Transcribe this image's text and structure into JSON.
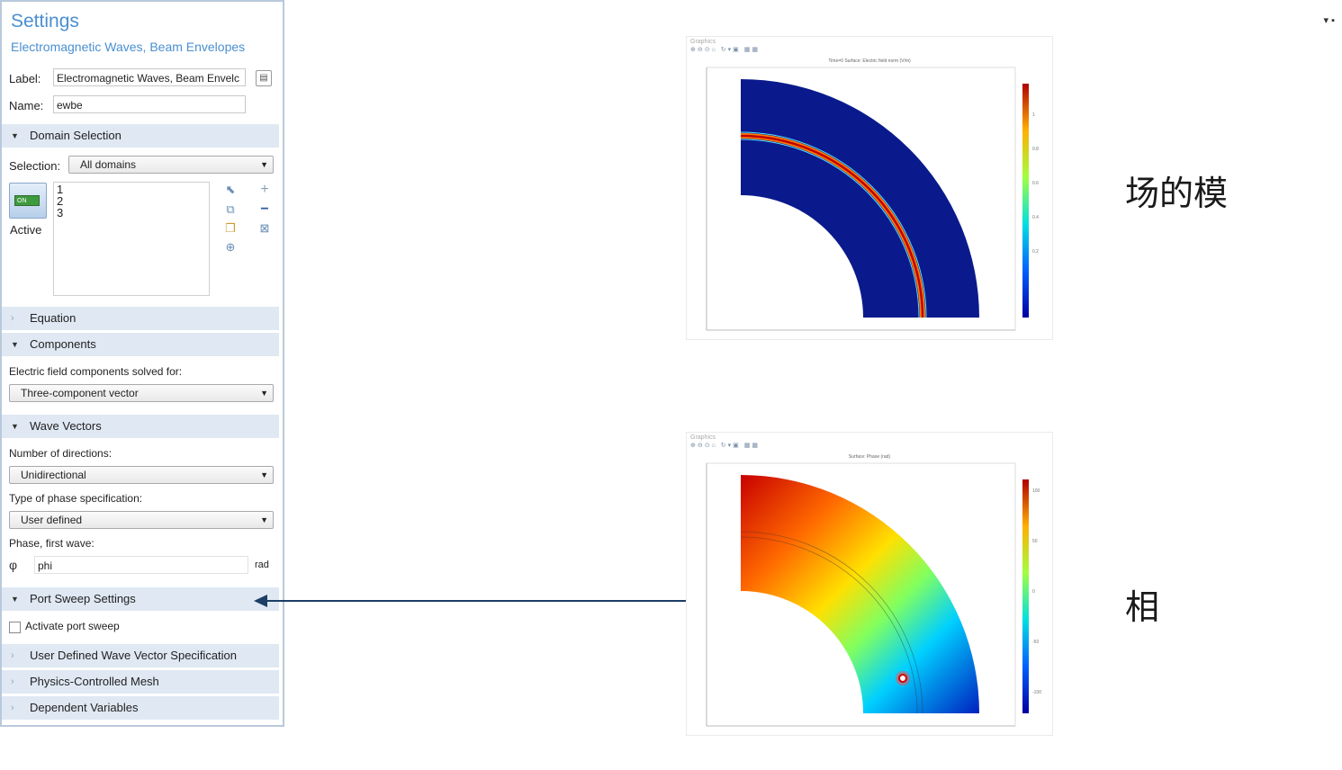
{
  "settings": {
    "title": "Settings",
    "subtitle": "Electromagnetic Waves, Beam Envelopes",
    "label_caption": "Label:",
    "label_value": "Electromagnetic Waves, Beam Envelc",
    "name_caption": "Name:",
    "name_value": "ewbe",
    "domain_selection": {
      "header": "Domain Selection",
      "selection_caption": "Selection:",
      "selection_value": "All domains",
      "active_toggle_text": "ON",
      "active_label": "Active",
      "domains": [
        "1",
        "2",
        "3"
      ]
    },
    "equation": {
      "header": "Equation"
    },
    "components": {
      "header": "Components",
      "field_caption": "Electric field components solved for:",
      "field_value": "Three-component vector"
    },
    "wave_vectors": {
      "header": "Wave Vectors",
      "directions_caption": "Number of directions:",
      "directions_value": "Unidirectional",
      "phase_spec_caption": "Type of phase specification:",
      "phase_spec_value": "User defined",
      "phase_caption": "Phase, first wave:",
      "phase_value": "phi",
      "phase_unit": "rad"
    },
    "port_sweep": {
      "header": "Port Sweep Settings",
      "checkbox_label": "Activate port sweep",
      "checked": false
    },
    "user_defined_wave": {
      "header": "User Defined Wave Vector Specification"
    },
    "physics_mesh": {
      "header": "Physics-Controlled Mesh"
    },
    "dependent_variables": {
      "header": "Dependent Variables"
    }
  },
  "graphics_top": {
    "window_title": "Graphics",
    "plot_title": "Time=0 Surface: Electric field norm (V/m)",
    "colorbar_ticks": [
      "1",
      "0.8",
      "0.6",
      "0.4",
      "0.2"
    ],
    "colormap": "rainbow",
    "background_color": "#0a1a8c"
  },
  "graphics_bottom": {
    "window_title": "Graphics",
    "plot_title": "Surface: Phase (rad)",
    "colorbar_ticks": [
      "100",
      "50",
      "0",
      "-50",
      "-100"
    ],
    "colormap": "rainbow"
  },
  "annotations": {
    "magnitude_label": "场的模",
    "phase_label": "相"
  },
  "colors": {
    "accent": "#4a8fd0",
    "section_bg": "#dfe8f3",
    "arrow": "#1c3d66",
    "panel_border": "#b9c9dc"
  }
}
